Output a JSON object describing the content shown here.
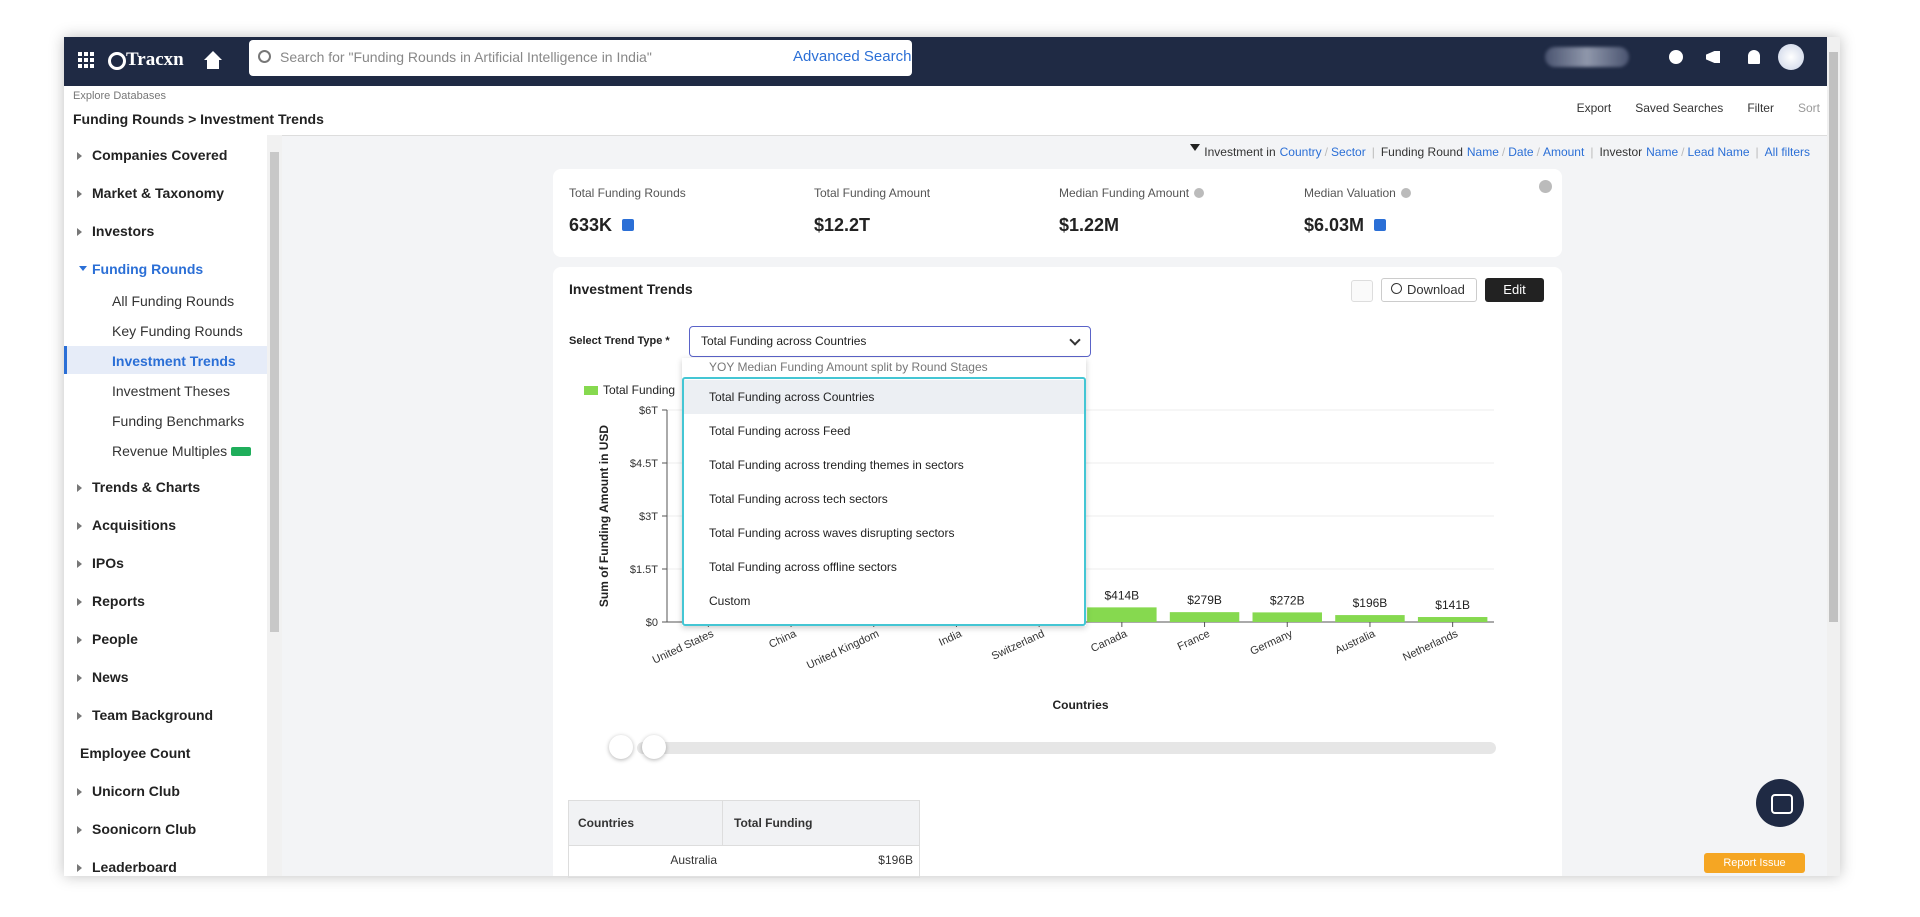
{
  "nav": {
    "brand": "Tracxn",
    "search_placeholder": "Search for \"Funding Rounds in Artificial Intelligence in India\"",
    "advanced_search": "Advanced Search"
  },
  "breadcrumb": {
    "section": "Explore Databases",
    "path": "Funding Rounds > Investment Trends"
  },
  "toolbar": [
    "Export",
    "Saved Searches",
    "Filter",
    "Sort"
  ],
  "filters": {
    "groups": [
      {
        "label": "Investment in",
        "links": [
          "Country",
          "Sector"
        ]
      },
      {
        "label": "Funding Round",
        "links": [
          "Name",
          "Date",
          "Amount"
        ]
      },
      {
        "label": "Investor",
        "links": [
          "Name",
          "Lead Name"
        ]
      }
    ],
    "all": "All filters"
  },
  "sidebar": [
    {
      "label": "Companies Covered"
    },
    {
      "label": "Market & Taxonomy"
    },
    {
      "label": "Investors"
    },
    {
      "label": "Funding Rounds",
      "children": [
        {
          "label": "All Funding Rounds"
        },
        {
          "label": "Key Funding Rounds"
        },
        {
          "label": "Investment Trends",
          "selected": true
        },
        {
          "label": "Investment Theses"
        },
        {
          "label": "Funding Benchmarks"
        },
        {
          "label": "Revenue Multiples",
          "badge": true
        }
      ]
    },
    {
      "label": "Trends & Charts"
    },
    {
      "label": "Acquisitions"
    },
    {
      "label": "IPOs"
    },
    {
      "label": "Reports"
    },
    {
      "label": "People"
    },
    {
      "label": "News"
    },
    {
      "label": "Team Background"
    },
    {
      "label": "Employee Count",
      "expandable": false
    },
    {
      "label": "Unicorn Club"
    },
    {
      "label": "Soonicorn Club"
    },
    {
      "label": "Leaderboard"
    }
  ],
  "stats": [
    {
      "label": "Total Funding Rounds",
      "value": "633K",
      "link": true
    },
    {
      "label": "Total Funding Amount",
      "value": "$12.2T"
    },
    {
      "label": "Median Funding Amount",
      "value": "$1.22M",
      "info": true
    },
    {
      "label": "Median Valuation",
      "value": "$6.03M",
      "info": true,
      "link": true
    }
  ],
  "card": {
    "title": "Investment Trends",
    "download": "Download",
    "edit": "Edit",
    "select_label": "Select Trend Type",
    "required": "*",
    "selected": "Total Funding across Countries",
    "options": [
      "YOY Median Funding Amount split by Round Stages",
      "Total Funding across Countries",
      "Total Funding across Feed",
      "Total Funding across trending themes in sectors",
      "Total Funding across tech sectors",
      "Total Funding across waves disrupting sectors",
      "Total Funding across offline sectors",
      "Custom"
    ]
  },
  "chart_data": {
    "type": "bar",
    "x_label": "Countries",
    "y_label": "Sum of Funding Amount in USD",
    "categories": [
      "United States",
      "China",
      "United Kingdom",
      "India",
      "Switzerland",
      "Canada",
      "France",
      "Germany",
      "Australia",
      "Netherlands"
    ],
    "series": [
      {
        "name": "Total Funding",
        "color": "#86d94f",
        "values": [
          null,
          null,
          null,
          null,
          null,
          0.414,
          0.279,
          0.272,
          0.196,
          0.141
        ],
        "value_labels": [
          null,
          null,
          null,
          null,
          null,
          "$414B",
          "$279B",
          "$272B",
          "$196B",
          "$141B"
        ]
      }
    ],
    "ylim": [
      0,
      6
    ],
    "yticks": [
      {
        "value": 0,
        "label": "$0"
      },
      {
        "value": 1.5,
        "label": "$1.5T"
      },
      {
        "value": 3,
        "label": "$3T"
      },
      {
        "value": 4.5,
        "label": "$4.5T"
      },
      {
        "value": 6,
        "label": "$6T"
      }
    ],
    "grid": true
  },
  "table": {
    "headers": [
      "Countries",
      "Total Funding"
    ],
    "rows": [
      [
        "Australia",
        "$196B"
      ]
    ]
  },
  "report_issue": "Report Issue"
}
